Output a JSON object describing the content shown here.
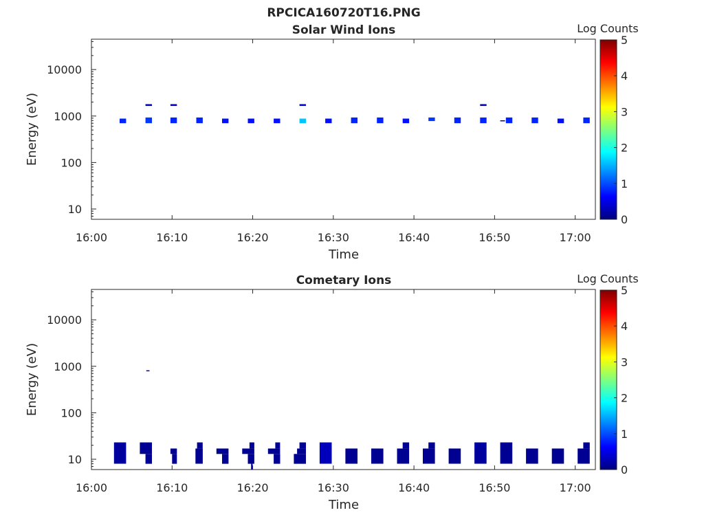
{
  "figure": {
    "title": "RPCICA160720T16.PNG"
  },
  "colorbar_stops": [
    "#00007f",
    "#0000ff",
    "#007fff",
    "#00ffff",
    "#7fff7f",
    "#ffff00",
    "#ff7f00",
    "#ff0000",
    "#7f0000"
  ],
  "chart_data": [
    {
      "type": "heatmap",
      "title": "Solar Wind Ions",
      "xlabel": "Time",
      "ylabel": "Energy (eV)",
      "y_scale": "log",
      "ylim": [
        6,
        45000
      ],
      "x_tick_labels": [
        "16:00",
        "16:10",
        "16:20",
        "16:30",
        "16:40",
        "16:50",
        "17:00"
      ],
      "x_ticks_minutes": [
        0,
        10,
        20,
        30,
        40,
        50,
        60
      ],
      "xlim_minutes": [
        0,
        62.5
      ],
      "y_ticks": [
        10,
        100,
        1000,
        10000
      ],
      "y_tick_labels": [
        "10",
        "100",
        "1000",
        "10000"
      ],
      "colorbar": {
        "label": "Log Counts",
        "range": [
          0,
          5
        ],
        "ticks": [
          "0",
          "1",
          "2",
          "3",
          "4",
          "5"
        ]
      },
      "cells": [
        {
          "t0": 3.5,
          "t1": 4.3,
          "e0": 700,
          "e1": 880,
          "v": 0.8
        },
        {
          "t0": 6.7,
          "t1": 7.5,
          "e0": 700,
          "e1": 930,
          "v": 0.9
        },
        {
          "t0": 6.7,
          "t1": 7.5,
          "e0": 1650,
          "e1": 1800,
          "v": 0.3
        },
        {
          "t0": 9.8,
          "t1": 10.6,
          "e0": 700,
          "e1": 930,
          "v": 0.8
        },
        {
          "t0": 9.8,
          "t1": 10.6,
          "e0": 1650,
          "e1": 1800,
          "v": 0.3
        },
        {
          "t0": 13.0,
          "t1": 13.8,
          "e0": 700,
          "e1": 930,
          "v": 0.8
        },
        {
          "t0": 16.2,
          "t1": 17.0,
          "e0": 700,
          "e1": 880,
          "v": 0.7
        },
        {
          "t0": 19.4,
          "t1": 20.2,
          "e0": 700,
          "e1": 880,
          "v": 0.7
        },
        {
          "t0": 22.6,
          "t1": 23.4,
          "e0": 700,
          "e1": 880,
          "v": 0.7
        },
        {
          "t0": 25.8,
          "t1": 26.6,
          "e0": 700,
          "e1": 880,
          "v": 1.6
        },
        {
          "t0": 25.8,
          "t1": 26.6,
          "e0": 1650,
          "e1": 1800,
          "v": 0.4
        },
        {
          "t0": 29.0,
          "t1": 29.8,
          "e0": 700,
          "e1": 880,
          "v": 0.7
        },
        {
          "t0": 32.2,
          "t1": 33.0,
          "e0": 700,
          "e1": 930,
          "v": 0.8
        },
        {
          "t0": 35.4,
          "t1": 36.2,
          "e0": 700,
          "e1": 930,
          "v": 0.8
        },
        {
          "t0": 38.6,
          "t1": 39.4,
          "e0": 700,
          "e1": 880,
          "v": 0.7
        },
        {
          "t0": 41.8,
          "t1": 42.6,
          "e0": 780,
          "e1": 930,
          "v": 0.9
        },
        {
          "t0": 45.0,
          "t1": 45.8,
          "e0": 700,
          "e1": 930,
          "v": 0.8
        },
        {
          "t0": 48.2,
          "t1": 49.0,
          "e0": 700,
          "e1": 930,
          "v": 0.8
        },
        {
          "t0": 48.2,
          "t1": 49.0,
          "e0": 1650,
          "e1": 1800,
          "v": 0.3
        },
        {
          "t0": 50.7,
          "t1": 51.3,
          "e0": 770,
          "e1": 810,
          "v": 0.2
        },
        {
          "t0": 51.4,
          "t1": 52.2,
          "e0": 700,
          "e1": 930,
          "v": 0.8
        },
        {
          "t0": 54.6,
          "t1": 55.4,
          "e0": 700,
          "e1": 930,
          "v": 0.8
        },
        {
          "t0": 57.8,
          "t1": 58.6,
          "e0": 700,
          "e1": 880,
          "v": 0.7
        },
        {
          "t0": 61.0,
          "t1": 61.8,
          "e0": 700,
          "e1": 930,
          "v": 0.8
        }
      ]
    },
    {
      "type": "heatmap",
      "title": "Cometary Ions",
      "xlabel": "Time",
      "ylabel": "Energy (eV)",
      "y_scale": "log",
      "ylim": [
        6,
        45000
      ],
      "x_tick_labels": [
        "16:00",
        "16:10",
        "16:20",
        "16:30",
        "16:40",
        "16:50",
        "17:00"
      ],
      "x_ticks_minutes": [
        0,
        10,
        20,
        30,
        40,
        50,
        60
      ],
      "xlim_minutes": [
        0,
        62.5
      ],
      "y_ticks": [
        10,
        100,
        1000,
        10000
      ],
      "y_tick_labels": [
        "10",
        "100",
        "1000",
        "10000"
      ],
      "colorbar": {
        "label": "Log Counts",
        "range": [
          0,
          5
        ],
        "ticks": [
          "0",
          "1",
          "2",
          "3",
          "4",
          "5"
        ]
      },
      "cells": [
        {
          "t0": 2.8,
          "t1": 4.3,
          "e0": 8,
          "e1": 23,
          "v": 0.15
        },
        {
          "t0": 6.0,
          "t1": 7.5,
          "e0": 13,
          "e1": 23,
          "v": 0.1
        },
        {
          "t0": 6.7,
          "t1": 7.5,
          "e0": 8,
          "e1": 13,
          "v": 0.1
        },
        {
          "t0": 6.8,
          "t1": 7.2,
          "e0": 780,
          "e1": 820,
          "v": 0.2
        },
        {
          "t0": 9.8,
          "t1": 10.6,
          "e0": 13,
          "e1": 17,
          "v": 0.1
        },
        {
          "t0": 10.0,
          "t1": 10.6,
          "e0": 8,
          "e1": 13,
          "v": 0.1
        },
        {
          "t0": 12.9,
          "t1": 13.8,
          "e0": 8,
          "e1": 17,
          "v": 0.1
        },
        {
          "t0": 13.1,
          "t1": 13.8,
          "e0": 17,
          "e1": 23,
          "v": 0.1
        },
        {
          "t0": 15.5,
          "t1": 17.0,
          "e0": 13,
          "e1": 17,
          "v": 0.1
        },
        {
          "t0": 16.2,
          "t1": 17.0,
          "e0": 8,
          "e1": 13,
          "v": 0.1
        },
        {
          "t0": 18.7,
          "t1": 20.2,
          "e0": 13,
          "e1": 17,
          "v": 0.1
        },
        {
          "t0": 19.4,
          "t1": 20.2,
          "e0": 8,
          "e1": 13,
          "v": 0.1
        },
        {
          "t0": 19.6,
          "t1": 20.2,
          "e0": 17,
          "e1": 23,
          "v": 0.1
        },
        {
          "t0": 19.8,
          "t1": 20.0,
          "e0": 6,
          "e1": 8,
          "v": 0.2
        },
        {
          "t0": 21.9,
          "t1": 23.4,
          "e0": 13,
          "e1": 17,
          "v": 0.1
        },
        {
          "t0": 22.6,
          "t1": 23.4,
          "e0": 8,
          "e1": 13,
          "v": 0.1
        },
        {
          "t0": 22.8,
          "t1": 23.4,
          "e0": 17,
          "e1": 23,
          "v": 0.1
        },
        {
          "t0": 25.1,
          "t1": 26.6,
          "e0": 8,
          "e1": 13,
          "v": 0.1
        },
        {
          "t0": 25.5,
          "t1": 26.6,
          "e0": 13,
          "e1": 17,
          "v": 0.1
        },
        {
          "t0": 25.8,
          "t1": 26.6,
          "e0": 17,
          "e1": 23,
          "v": 0.1
        },
        {
          "t0": 28.3,
          "t1": 29.8,
          "e0": 8,
          "e1": 23,
          "v": 0.3
        },
        {
          "t0": 31.5,
          "t1": 33.0,
          "e0": 8,
          "e1": 17,
          "v": 0.1
        },
        {
          "t0": 34.7,
          "t1": 36.2,
          "e0": 8,
          "e1": 17,
          "v": 0.1
        },
        {
          "t0": 37.9,
          "t1": 39.4,
          "e0": 8,
          "e1": 17,
          "v": 0.1
        },
        {
          "t0": 38.6,
          "t1": 39.4,
          "e0": 17,
          "e1": 23,
          "v": 0.1
        },
        {
          "t0": 41.1,
          "t1": 42.6,
          "e0": 8,
          "e1": 17,
          "v": 0.1
        },
        {
          "t0": 41.8,
          "t1": 42.6,
          "e0": 17,
          "e1": 23,
          "v": 0.1
        },
        {
          "t0": 44.3,
          "t1": 45.8,
          "e0": 8,
          "e1": 17,
          "v": 0.1
        },
        {
          "t0": 47.5,
          "t1": 49.0,
          "e0": 8,
          "e1": 23,
          "v": 0.15
        },
        {
          "t0": 50.7,
          "t1": 52.2,
          "e0": 8,
          "e1": 23,
          "v": 0.1
        },
        {
          "t0": 53.9,
          "t1": 55.4,
          "e0": 8,
          "e1": 17,
          "v": 0.1
        },
        {
          "t0": 57.1,
          "t1": 58.6,
          "e0": 8,
          "e1": 17,
          "v": 0.1
        },
        {
          "t0": 60.3,
          "t1": 61.8,
          "e0": 8,
          "e1": 17,
          "v": 0.1
        },
        {
          "t0": 61.0,
          "t1": 61.8,
          "e0": 17,
          "e1": 23,
          "v": 0.1
        }
      ]
    }
  ]
}
